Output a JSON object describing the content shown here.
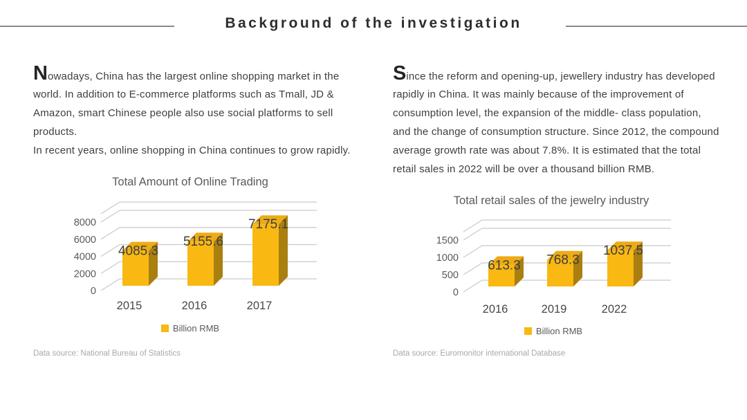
{
  "header": {
    "title": "Background of the investigation"
  },
  "left_column": {
    "lead": "N",
    "lines": [
      "owadays, China has the largest online shopping market in the",
      "world. In addition to E-commerce platforms such as Tmall, JD &",
      "Amazon, smart Chinese people also use social platforms to sell",
      "products.",
      "In recent years, online shopping in China continues to grow rapidly."
    ]
  },
  "right_column": {
    "lead": "S",
    "lines": [
      "ince the reform and opening-up, jewellery industry has developed",
      "rapidly in China. It was mainly because of the improvement of",
      "consumption level, the expansion of the middle- class population,",
      "and the change of consumption structure. Since 2012, the compound",
      "average growth rate was about 7.8%. It is estimated that the total",
      "retail sales in 2022 will be over a thousand billion RMB."
    ]
  },
  "chart_data": [
    {
      "type": "bar",
      "variant": "3d-column",
      "title": "Total Amount of Online Trading",
      "categories": [
        "2015",
        "2016",
        "2017"
      ],
      "values": [
        4085.3,
        5155.6,
        7175.1
      ],
      "data_labels": [
        "4085.3",
        "5155.6",
        "7175.1"
      ],
      "yticks": [
        0,
        2000,
        4000,
        6000,
        8000
      ],
      "ylim": [
        0,
        8000
      ],
      "grid": true,
      "legend": "Billion RMB",
      "legend_position": "bottom",
      "data_source": "Data source: National Bureau of Statistics",
      "colors": {
        "bar_front": "#F9B812",
        "bar_top": "#EDAC15",
        "bar_side": "#A97F10",
        "grid": "#c9c9c9",
        "tick_text": "#595959",
        "category_text": "#474747",
        "data_label_text": "#3f3f3f"
      }
    },
    {
      "type": "bar",
      "variant": "3d-column",
      "title": "Total retail sales of the jewelry industry",
      "categories": [
        "2016",
        "2019",
        "2022"
      ],
      "values": [
        613.3,
        768.3,
        1037.5
      ],
      "data_labels": [
        "613.3",
        "768.3",
        "1037.5"
      ],
      "yticks": [
        0,
        500,
        1000,
        1500
      ],
      "ylim": [
        0,
        1500
      ],
      "grid": true,
      "legend": "Billion RMB",
      "legend_position": "bottom",
      "data_source": "Data source: Euromonitor international Database",
      "colors": {
        "bar_front": "#F9B812",
        "bar_top": "#EDAC15",
        "bar_side": "#A97F10",
        "grid": "#c9c9c9",
        "tick_text": "#595959",
        "category_text": "#474747",
        "data_label_text": "#3f3f3f"
      }
    }
  ]
}
